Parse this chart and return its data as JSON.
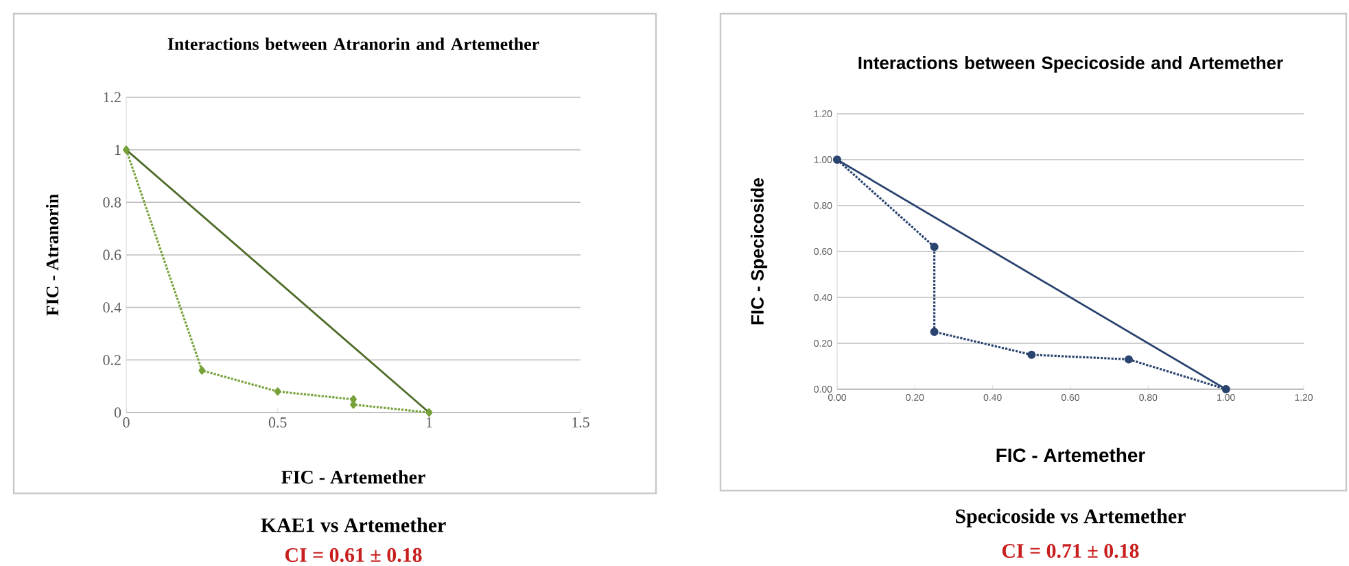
{
  "chart_data": [
    {
      "type": "line",
      "title": "Interactions between Atranorin and Artemether",
      "xlabel": "FIC - Artemether",
      "ylabel": "FIC - Atranorin",
      "annotations": [
        "KAE1 vs Artemether",
        "CI = 0.61 ± 0.18"
      ],
      "xlim": [
        0,
        1.5
      ],
      "ylim": [
        0,
        1.2
      ],
      "xticks": [
        0,
        0.5,
        1,
        1.5
      ],
      "yticks": [
        0,
        0.2,
        0.4,
        0.6,
        0.8,
        1,
        1.2
      ],
      "grid": "y",
      "series": [
        {
          "color": "#4f6b28",
          "line_style": "solid",
          "marker": "diamond",
          "x": [
            0,
            1
          ],
          "values": [
            1,
            0
          ]
        },
        {
          "color": "#77a23a",
          "line_style": "dotted",
          "marker": "diamond",
          "x": [
            0,
            0.25,
            0.5,
            0.75,
            0.75,
            1
          ],
          "values": [
            1,
            0.16,
            0.08,
            0.05,
            0.03,
            0
          ]
        }
      ]
    },
    {
      "type": "line",
      "title": "Interactions between Specicoside and Artemether",
      "xlabel": "FIC - Artemether",
      "ylabel": "FIC - Specicoside",
      "annotations": [
        "Specicoside vs Artemether",
        "CI = 0.71 ± 0.18"
      ],
      "xlim": [
        0,
        1.2
      ],
      "ylim": [
        0,
        1.2
      ],
      "xticks": [
        {
          "value": 0,
          "label": "0.00"
        },
        {
          "value": 0.2,
          "label": "0.20"
        },
        {
          "value": 0.4,
          "label": "0.40"
        },
        {
          "value": 0.6,
          "label": "0.60"
        },
        {
          "value": 0.8,
          "label": "0.80"
        },
        {
          "value": 1,
          "label": "1.00"
        },
        {
          "value": 1.2,
          "label": "1.20"
        }
      ],
      "yticks": [
        {
          "value": 0,
          "label": "0.00"
        },
        {
          "value": 0.2,
          "label": "0.20"
        },
        {
          "value": 0.4,
          "label": "0.40"
        },
        {
          "value": 0.6,
          "label": "0.60"
        },
        {
          "value": 0.8,
          "label": "0.80"
        },
        {
          "value": 1,
          "label": "1.00"
        },
        {
          "value": 1.2,
          "label": "1.20"
        }
      ],
      "grid": "y",
      "series": [
        {
          "color": "#2a4470",
          "line_style": "solid",
          "marker": "circle",
          "x": [
            0,
            1
          ],
          "values": [
            1,
            0
          ]
        },
        {
          "color": "#2a4470",
          "line_style": "dotted",
          "marker": "circle",
          "x": [
            0,
            0.25,
            0.25,
            0.5,
            0.75,
            1
          ],
          "values": [
            1,
            0.62,
            0.25,
            0.15,
            0.13,
            0
          ]
        }
      ]
    }
  ]
}
